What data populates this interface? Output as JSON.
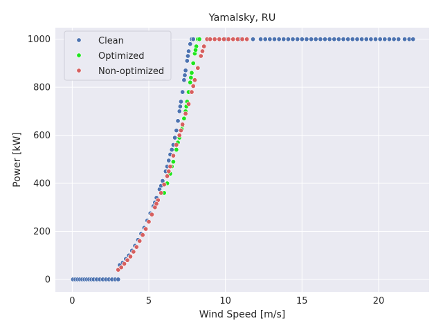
{
  "chart_data": {
    "type": "scatter",
    "title": "Yamalsky, RU",
    "xlabel": "Wind Speed [m/s]",
    "ylabel": "Power [kW]",
    "xlim": [
      -1.1,
      23.3
    ],
    "ylim": [
      -52,
      1048
    ],
    "xticks": [
      0,
      5,
      10,
      15,
      20
    ],
    "yticks": [
      0,
      200,
      400,
      600,
      800,
      1000
    ],
    "grid": true,
    "legend_position": "top-left",
    "series": [
      {
        "name": "Clean",
        "color": "#4c72b0",
        "points": [
          [
            0.05,
            0
          ],
          [
            0.2,
            0
          ],
          [
            0.35,
            0
          ],
          [
            0.5,
            0
          ],
          [
            0.65,
            0
          ],
          [
            0.8,
            0
          ],
          [
            0.95,
            0
          ],
          [
            1.1,
            0
          ],
          [
            1.25,
            0
          ],
          [
            1.4,
            0
          ],
          [
            1.6,
            0
          ],
          [
            1.8,
            0
          ],
          [
            2.0,
            0
          ],
          [
            2.2,
            0
          ],
          [
            2.4,
            0
          ],
          [
            2.6,
            0
          ],
          [
            2.8,
            0
          ],
          [
            3.0,
            0
          ],
          [
            3.1,
            60
          ],
          [
            3.3,
            70
          ],
          [
            3.5,
            85
          ],
          [
            3.7,
            100
          ],
          [
            3.9,
            120
          ],
          [
            4.1,
            140
          ],
          [
            4.3,
            165
          ],
          [
            4.5,
            190
          ],
          [
            4.7,
            215
          ],
          [
            4.9,
            245
          ],
          [
            5.1,
            275
          ],
          [
            5.3,
            305
          ],
          [
            5.5,
            340
          ],
          [
            5.7,
            375
          ],
          [
            5.9,
            410
          ],
          [
            6.1,
            450
          ],
          [
            6.3,
            495
          ],
          [
            6.5,
            540
          ],
          [
            6.6,
            560
          ],
          [
            6.7,
            590
          ],
          [
            6.8,
            620
          ],
          [
            6.9,
            660
          ],
          [
            7.0,
            700
          ],
          [
            7.1,
            740
          ],
          [
            7.2,
            780
          ],
          [
            7.3,
            830
          ],
          [
            7.4,
            870
          ],
          [
            7.5,
            910
          ],
          [
            7.6,
            950
          ],
          [
            7.7,
            980
          ],
          [
            7.8,
            1000
          ],
          [
            5.4,
            320
          ],
          [
            5.8,
            390
          ],
          [
            6.2,
            470
          ],
          [
            6.4,
            520
          ],
          [
            7.05,
            720
          ],
          [
            7.35,
            850
          ],
          [
            7.55,
            930
          ],
          [
            7.9,
            1000
          ],
          [
            8.2,
            1000
          ],
          [
            9.0,
            1000
          ],
          [
            10.0,
            1000
          ],
          [
            11.0,
            1000
          ],
          [
            11.8,
            1000
          ],
          [
            12.3,
            1000
          ],
          [
            12.6,
            1000
          ],
          [
            12.9,
            1000
          ],
          [
            13.2,
            1000
          ],
          [
            13.5,
            1000
          ],
          [
            13.8,
            1000
          ],
          [
            14.1,
            1000
          ],
          [
            14.4,
            1000
          ],
          [
            14.7,
            1000
          ],
          [
            15.0,
            1000
          ],
          [
            15.3,
            1000
          ],
          [
            15.6,
            1000
          ],
          [
            15.9,
            1000
          ],
          [
            16.2,
            1000
          ],
          [
            16.5,
            1000
          ],
          [
            16.8,
            1000
          ],
          [
            17.1,
            1000
          ],
          [
            17.4,
            1000
          ],
          [
            17.7,
            1000
          ],
          [
            18.0,
            1000
          ],
          [
            18.3,
            1000
          ],
          [
            18.6,
            1000
          ],
          [
            18.9,
            1000
          ],
          [
            19.2,
            1000
          ],
          [
            19.5,
            1000
          ],
          [
            19.8,
            1000
          ],
          [
            20.1,
            1000
          ],
          [
            20.4,
            1000
          ],
          [
            20.7,
            1000
          ],
          [
            21.0,
            1000
          ],
          [
            21.3,
            1000
          ],
          [
            21.7,
            1000
          ],
          [
            22.0,
            1000
          ],
          [
            22.25,
            1000
          ]
        ]
      },
      {
        "name": "Optimized",
        "color": "#1ee51e",
        "points": [
          [
            6.0,
            360
          ],
          [
            6.2,
            400
          ],
          [
            6.4,
            440
          ],
          [
            6.6,
            490
          ],
          [
            6.8,
            540
          ],
          [
            7.0,
            590
          ],
          [
            7.2,
            640
          ],
          [
            7.3,
            670
          ],
          [
            7.4,
            700
          ],
          [
            7.5,
            740
          ],
          [
            7.6,
            780
          ],
          [
            7.7,
            820
          ],
          [
            7.8,
            860
          ],
          [
            7.9,
            900
          ],
          [
            8.0,
            940
          ],
          [
            8.1,
            970
          ],
          [
            8.2,
            1000
          ],
          [
            6.5,
            470
          ],
          [
            6.9,
            570
          ],
          [
            7.15,
            625
          ],
          [
            7.45,
            720
          ],
          [
            7.75,
            840
          ],
          [
            8.05,
            955
          ],
          [
            8.3,
            1000
          ]
        ]
      },
      {
        "name": "Non-optimized",
        "color": "#d65f5f",
        "points": [
          [
            3.0,
            40
          ],
          [
            3.2,
            50
          ],
          [
            3.4,
            65
          ],
          [
            3.6,
            80
          ],
          [
            3.8,
            95
          ],
          [
            4.0,
            115
          ],
          [
            4.2,
            135
          ],
          [
            4.4,
            160
          ],
          [
            4.6,
            185
          ],
          [
            4.8,
            210
          ],
          [
            5.0,
            240
          ],
          [
            5.2,
            270
          ],
          [
            5.4,
            300
          ],
          [
            5.6,
            330
          ],
          [
            5.8,
            360
          ],
          [
            6.0,
            395
          ],
          [
            6.2,
            430
          ],
          [
            6.4,
            470
          ],
          [
            6.6,
            515
          ],
          [
            6.8,
            560
          ],
          [
            7.0,
            600
          ],
          [
            7.2,
            645
          ],
          [
            7.4,
            690
          ],
          [
            7.6,
            730
          ],
          [
            7.8,
            780
          ],
          [
            8.0,
            830
          ],
          [
            8.2,
            880
          ],
          [
            8.4,
            930
          ],
          [
            8.6,
            970
          ],
          [
            8.8,
            1000
          ],
          [
            5.5,
            315
          ],
          [
            6.3,
            450
          ],
          [
            7.1,
            620
          ],
          [
            7.9,
            805
          ],
          [
            8.5,
            950
          ],
          [
            9.0,
            1000
          ],
          [
            9.3,
            1000
          ],
          [
            9.6,
            1000
          ],
          [
            9.9,
            1000
          ],
          [
            10.2,
            1000
          ],
          [
            10.5,
            1000
          ],
          [
            10.8,
            1000
          ],
          [
            11.1,
            1000
          ],
          [
            11.4,
            1000
          ]
        ]
      }
    ]
  }
}
